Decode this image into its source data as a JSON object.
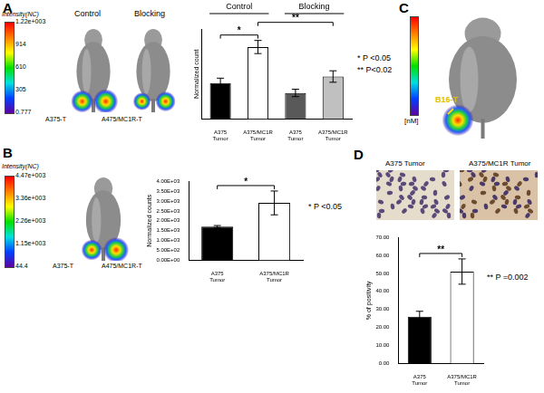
{
  "figure": {
    "A": {
      "colorbar": {
        "title": "Intensity(NC)",
        "ticks": [
          "1.22e+003",
          "914",
          "610",
          "305",
          "0.777"
        ]
      },
      "images": [
        "Control",
        "Blocking"
      ],
      "labels": [
        "A375-T",
        "A475/MC1R-T"
      ]
    },
    "B": {
      "colorbar": {
        "title": "Intensity(NC)",
        "ticks": [
          "4.47e+003",
          "3.36e+003",
          "2.26e+003",
          "1.15e+003",
          "44.4"
        ]
      },
      "labels": [
        "A375-T",
        "A475/MC1R-T"
      ]
    },
    "C": {
      "colorbar": {
        "title": "[nM]"
      },
      "labels": [
        "B16-T"
      ]
    },
    "D": {
      "images": [
        "A375 Tumor",
        "A375/MC1R Tumor"
      ]
    }
  },
  "chart_data": [
    {
      "panel": "A",
      "type": "bar",
      "categories": [
        "A375 Tumor",
        "A375/MC1R Tumor",
        "A375 Tumor",
        "A375/MC1R Tumor"
      ],
      "groups": [
        "Control",
        "Control",
        "Blocking",
        "Blocking"
      ],
      "values": [
        440,
        880,
        320,
        520
      ],
      "errors": [
        60,
        80,
        45,
        70
      ],
      "colors": [
        "#000000",
        "#ffffff",
        "#595959",
        "#c0c0c0"
      ],
      "y_label": "Normalized count",
      "ylim": [
        0,
        1100
      ],
      "tick_labels": "x",
      "grid": false,
      "comparisons": [
        {
          "pair": [
            0,
            1
          ],
          "label": "*"
        },
        {
          "pair": [
            1,
            3
          ],
          "label": "**"
        }
      ],
      "annotations": [
        "* P <0.05",
        "** P<0.02"
      ]
    },
    {
      "panel": "B",
      "type": "bar",
      "categories": [
        "A375 Tumor",
        "A375/MC1R Tumor"
      ],
      "values": [
        1700,
        2900
      ],
      "errors": [
        60,
        600
      ],
      "colors": [
        "#000000",
        "#ffffff"
      ],
      "y_label": "Normalized counts",
      "ylim": [
        0,
        4000
      ],
      "yticks": [
        {
          "value": 0,
          "label": "0.00E+00"
        },
        {
          "value": 500,
          "label": "5.00E+02"
        },
        {
          "value": 1000,
          "label": "1.00E+03"
        },
        {
          "value": 1500,
          "label": "1.50E+03"
        },
        {
          "value": 2000,
          "label": "2.00E+03"
        },
        {
          "value": 2500,
          "label": "2.50E+03"
        },
        {
          "value": 3000,
          "label": "3.00E+03"
        },
        {
          "value": 3500,
          "label": "3.50E+03"
        },
        {
          "value": 4000,
          "label": "4.00E+03"
        }
      ],
      "grid": false,
      "comparisons": [
        {
          "pair": [
            0,
            1
          ],
          "label": "*"
        }
      ],
      "annotations": [
        "* P <0.05"
      ]
    },
    {
      "panel": "D",
      "type": "bar",
      "categories": [
        "A375 Tumor",
        "A375/MC1R Tumor"
      ],
      "values": [
        26,
        51
      ],
      "errors": [
        3,
        7
      ],
      "colors": [
        "#000000",
        "#ffffff"
      ],
      "y_label": "% of positivity",
      "ylim": [
        0,
        70
      ],
      "yticks": [
        {
          "value": 0,
          "label": "0.00"
        },
        {
          "value": 10,
          "label": "10.00"
        },
        {
          "value": 20,
          "label": "20.00"
        },
        {
          "value": 30,
          "label": "30.00"
        },
        {
          "value": 40,
          "label": "40.00"
        },
        {
          "value": 50,
          "label": "50.00"
        },
        {
          "value": 60,
          "label": "60.00"
        },
        {
          "value": 70,
          "label": "70.00"
        }
      ],
      "grid": false,
      "comparisons": [
        {
          "pair": [
            0,
            1
          ],
          "label": "**"
        }
      ],
      "annotations": [
        "** P =0.002"
      ]
    }
  ]
}
